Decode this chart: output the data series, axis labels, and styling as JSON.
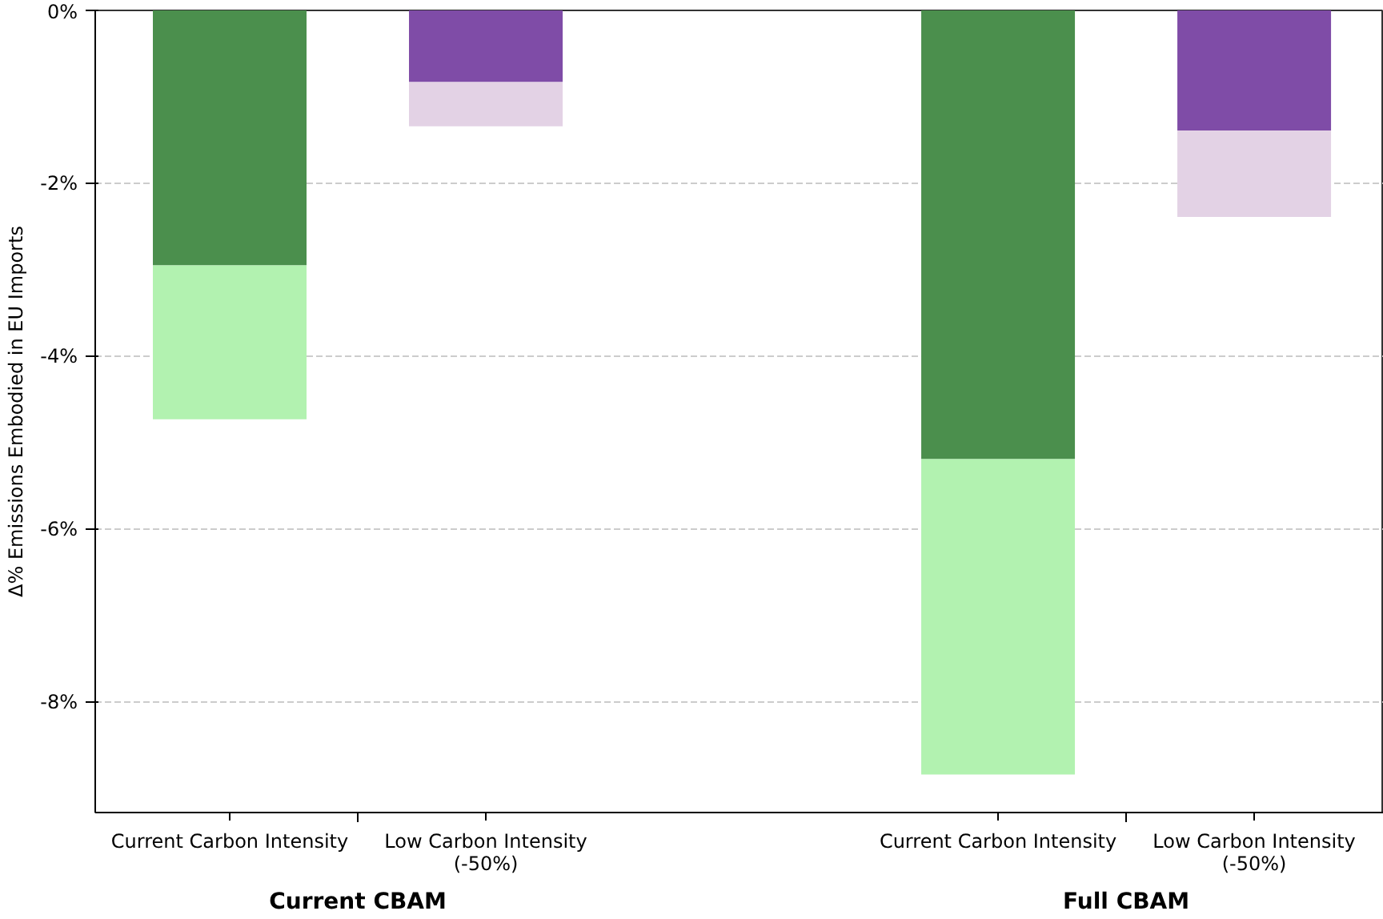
{
  "chart_data": {
    "type": "bar",
    "stacked": true,
    "ylabel": "Δ% Emissions Embodied in EU Imports",
    "categories": [
      "Current Carbon Intensity",
      "Low Carbon Intensity\n(-50%)",
      "Current Carbon Intensity",
      "Low Carbon Intensity\n(-50%)"
    ],
    "series": [
      {
        "colors": [
          "#4b8f4d",
          "#7f4ca7",
          "#4b8f4d",
          "#7f4ca7"
        ],
        "values": [
          -2.95,
          -0.83,
          -5.19,
          -1.39
        ]
      },
      {
        "colors": [
          "#b2f2b0",
          "#e3d2e5",
          "#b2f2b0",
          "#e3d2e5"
        ],
        "values": [
          -1.78,
          -0.51,
          -3.65,
          -1.0
        ]
      }
    ],
    "annotations": [
      "Current CBAM",
      "Full CBAM"
    ],
    "ylim": [
      -9.28,
      0
    ],
    "yticks": [
      {
        "value": 0,
        "label": "0%"
      },
      {
        "value": -2,
        "label": "-2%"
      },
      {
        "value": -4,
        "label": "-4%"
      },
      {
        "value": -6,
        "label": "-6%"
      },
      {
        "value": -8,
        "label": "-8%"
      }
    ],
    "grid": "y"
  }
}
